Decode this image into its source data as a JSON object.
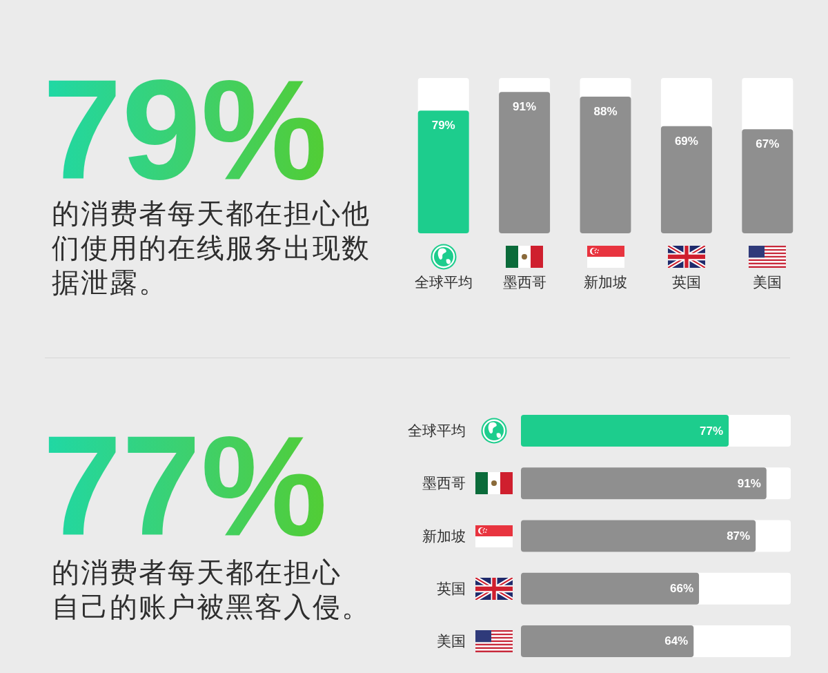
{
  "chart_data": [
    {
      "type": "bar",
      "title": "79%",
      "subtitle": "的消费者每天都在担心他们使用的在线服务出现数据泄露。",
      "categories": [
        "全球平均",
        "墨西哥",
        "新加坡",
        "英国",
        "美国"
      ],
      "values": [
        79,
        91,
        88,
        69,
        67
      ],
      "colors": [
        "#1dcd8d",
        "#8f8f8f",
        "#8f8f8f",
        "#8f8f8f",
        "#8f8f8f"
      ],
      "value_labels": [
        "79%",
        "91%",
        "88%",
        "69%",
        "67%"
      ],
      "ylim": [
        0,
        100
      ],
      "tick_labels": "x"
    },
    {
      "type": "bar",
      "orientation": "horizontal",
      "title": "77%",
      "subtitle": "的消费者每天都在担心自己的账户被黑客入侵。",
      "categories": [
        "全球平均",
        "墨西哥",
        "新加坡",
        "英国",
        "美国"
      ],
      "values": [
        77,
        91,
        87,
        66,
        64
      ],
      "colors": [
        "#1dcd8d",
        "#8f8f8f",
        "#8f8f8f",
        "#8f8f8f",
        "#8f8f8f"
      ],
      "value_labels": [
        "77%",
        "91%",
        "87%",
        "66%",
        "64%"
      ],
      "xlim": [
        0,
        100
      ],
      "tick_labels": "y"
    }
  ]
}
